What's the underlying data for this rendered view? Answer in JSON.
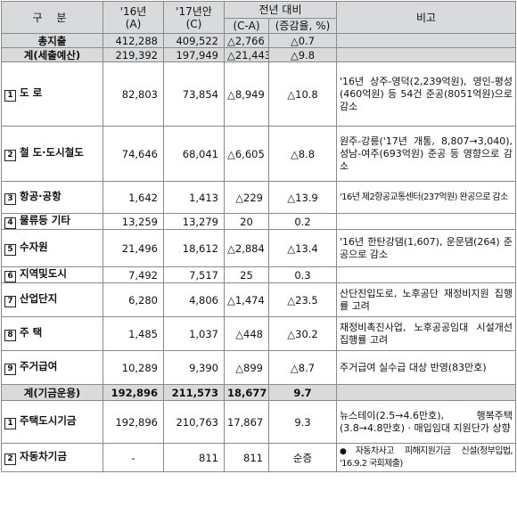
{
  "header": {
    "gubun": "구 분",
    "c16_line1": "'16년",
    "c16_line2": "(A)",
    "c17_line1": "'17년안",
    "c17_line2": "(C)",
    "change_group": "전년 대비",
    "change_sub1": "(C-A)",
    "change_sub2": "(증감율, %)",
    "note": "비고"
  },
  "rows": [
    {
      "label": "총지출",
      "y16": "412,288",
      "y17": "409,522",
      "diff": "△2,766",
      "rate": "△0.7",
      "note": ""
    },
    {
      "label": "계(세출예산)",
      "y16": "219,392",
      "y17": "197,949",
      "diff": "△21,443",
      "rate": "△9.8",
      "note": ""
    },
    {
      "box": "1",
      "label": "도 로",
      "y16": "82,803",
      "y17": "73,854",
      "diff": "△8,949",
      "rate": "△10.8",
      "note": "'16년 상주-영덕(2,239억원), 영인-평성(460억원) 등 54건 준공(8051억원)으로 감소"
    },
    {
      "box": "2",
      "label": "철 도·도시철도",
      "y16": "74,646",
      "y17": "68,041",
      "diff": "△6,605",
      "rate": "△8.8",
      "note": "원주-강릉('17년 개통, 8,807→3,040), 성남-여주(693억원) 준공 등 영향으로 감소"
    },
    {
      "box": "3",
      "label": "항공·공항",
      "y16": "1,642",
      "y17": "1,413",
      "diff": "△229",
      "rate": "△13.9",
      "note": "'16년 제2항공교통센터(237억원) 완공으로 감소"
    },
    {
      "box": "4",
      "label": "물류등 기타",
      "y16": "13,259",
      "y17": "13,279",
      "diff": "20",
      "rate": "0.2",
      "note": ""
    },
    {
      "box": "5",
      "label": "수자원",
      "y16": "21,496",
      "y17": "18,612",
      "diff": "△2,884",
      "rate": "△13.4",
      "note": "'16년 한탄강댐(1,607), 운문댐(264) 준공으로 감소"
    },
    {
      "box": "6",
      "label": "지역및도시",
      "y16": "7,492",
      "y17": "7,517",
      "diff": "25",
      "rate": "0.3",
      "note": ""
    },
    {
      "box": "7",
      "label": "산업단지",
      "y16": "6,280",
      "y17": "4,806",
      "diff": "△1,474",
      "rate": "△23.5",
      "note": "산단진입도로, 노후공단 재정비지원 집행률 고려"
    },
    {
      "box": "8",
      "label": "주 택",
      "y16": "1,485",
      "y17": "1,037",
      "diff": "△448",
      "rate": "△30.2",
      "note": "재정비촉진사업, 노후공공임대 시설개선 집행률 고려"
    },
    {
      "box": "9",
      "label": "주거급여",
      "y16": "10,289",
      "y17": "9,390",
      "diff": "△899",
      "rate": "△8.7",
      "note": "주거급여 실수급 대상 반영(83만호)"
    },
    {
      "label": "계(기금운용)",
      "y16": "192,896",
      "y17": "211,573",
      "diff": "18,677",
      "rate": "9.7",
      "note": ""
    },
    {
      "box": "1",
      "label": "주택도시기금",
      "y16": "192,896",
      "y17": "210,763",
      "diff": "17,867",
      "rate": "9.3",
      "note": "뉴스테이(2.5→4.6만호), 행복주택(3.8→4.8만호) · 매입임대 지원단가 상향"
    },
    {
      "box": "2",
      "label": "자동차기금",
      "y16": "-",
      "y17": "811",
      "diff": "811",
      "rate": "순증",
      "note_bullet": "●",
      "note": "자동차사고 피해지원기금 신설(정부입법, '16.9.2 국회제출)"
    }
  ]
}
